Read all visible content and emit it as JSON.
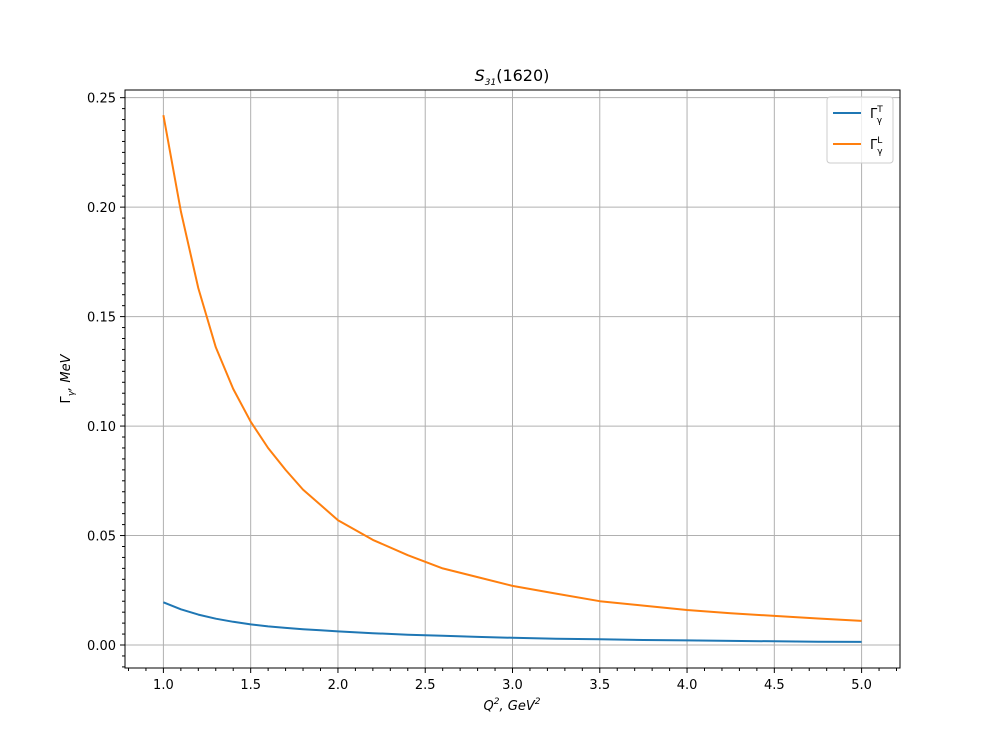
{
  "chart_data": {
    "type": "line",
    "title": {
      "base": "S",
      "sub": "31",
      "rest": "(1620)"
    },
    "xlabel": {
      "base": "Q",
      "sup1": "2",
      "mid": ", GeV",
      "sup2": "2"
    },
    "ylabel": {
      "base": "Γ",
      "sub": "γ",
      "rest": ", MeV"
    },
    "xlim": [
      0.78,
      5.22
    ],
    "ylim": [
      -0.0105,
      0.2535
    ],
    "xticks": [
      "1.0",
      "1.5",
      "2.0",
      "2.5",
      "3.0",
      "3.5",
      "4.0",
      "4.5",
      "5.0"
    ],
    "yticks": [
      "0.00",
      "0.05",
      "0.10",
      "0.15",
      "0.20",
      "0.25"
    ],
    "grid": true,
    "legend_position": "top-right",
    "x": [
      1.0,
      1.1,
      1.2,
      1.3,
      1.4,
      1.5,
      1.6,
      1.7,
      1.8,
      1.9,
      2.0,
      2.2,
      2.4,
      2.6,
      2.8,
      3.0,
      3.25,
      3.5,
      3.75,
      4.0,
      4.25,
      4.5,
      4.75,
      5.0
    ],
    "series": [
      {
        "name": {
          "base": "Γ",
          "sup": "T",
          "sub": "γ"
        },
        "color": "#1f77b4",
        "values": [
          0.0195,
          0.0163,
          0.0139,
          0.012,
          0.0106,
          0.0094,
          0.0085,
          0.0078,
          0.0072,
          0.0067,
          0.0062,
          0.0054,
          0.0047,
          0.0042,
          0.0037,
          0.0033,
          0.0029,
          0.0026,
          0.0023,
          0.0021,
          0.0019,
          0.0017,
          0.0015,
          0.0014
        ]
      },
      {
        "name": {
          "base": "Γ",
          "sup": "L",
          "sub": "γ"
        },
        "color": "#ff7f0e",
        "values": [
          0.242,
          0.198,
          0.163,
          0.136,
          0.117,
          0.102,
          0.09,
          0.08,
          0.071,
          0.064,
          0.057,
          0.048,
          0.041,
          0.035,
          0.031,
          0.027,
          0.0235,
          0.02,
          0.018,
          0.016,
          0.0145,
          0.0133,
          0.0121,
          0.011
        ]
      }
    ]
  }
}
